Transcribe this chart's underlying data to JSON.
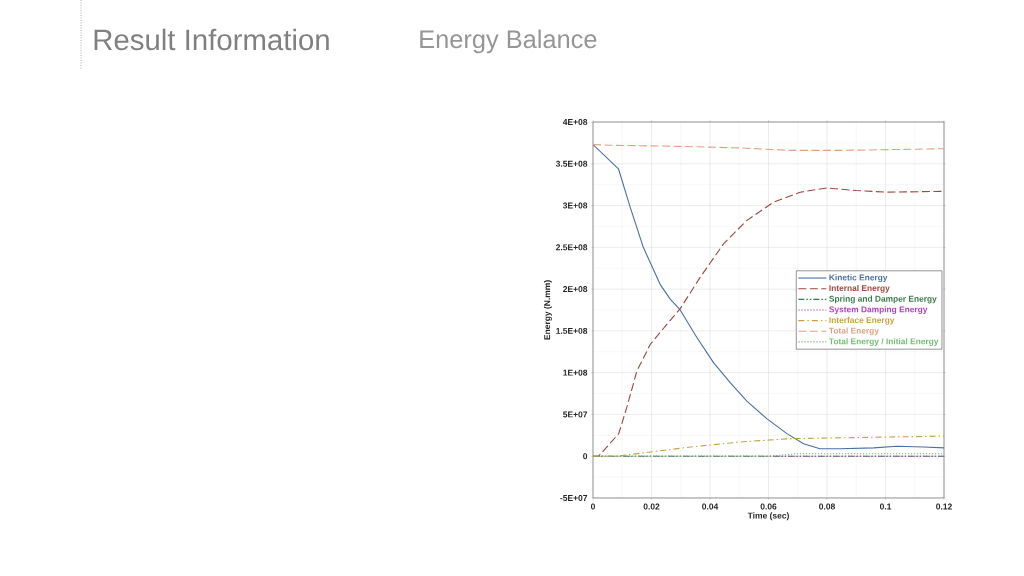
{
  "chart_data": {
    "type": "line",
    "title": "Result Information",
    "subtitle": "Energy Balance",
    "xlabel": "Time (sec)",
    "ylabel": "Energy (N.mm)",
    "xlim": [
      0,
      0.12
    ],
    "xticks": [
      0,
      0.02,
      0.04,
      0.06,
      0.08,
      0.1,
      0.12
    ],
    "ylim": [
      -50000000.0,
      400000000.0
    ],
    "yticks": [
      {
        "value": -50000000.0,
        "label": "-5E+07"
      },
      0,
      {
        "value": 50000000.0,
        "label": "5E+07"
      },
      {
        "value": 100000000.0,
        "label": "1E+08"
      },
      {
        "value": 150000000.0,
        "label": "1.5E+08"
      },
      {
        "value": 200000000.0,
        "label": "2E+08"
      },
      {
        "value": 250000000.0,
        "label": "2.5E+08"
      },
      {
        "value": 300000000.0,
        "label": "3E+08"
      },
      {
        "value": 350000000.0,
        "label": "3.5E+08"
      },
      {
        "value": 400000000.0,
        "label": "4E+08"
      }
    ],
    "grid": true,
    "legend": "right",
    "marker": "none",
    "series": [
      {
        "name": "Kinetic Energy",
        "color": "#4a6fa5",
        "line_style": "solid",
        "x": [
          0,
          0.0087,
          0.0127,
          0.0172,
          0.0229,
          0.0264,
          0.0298,
          0.0355,
          0.0412,
          0.0469,
          0.0526,
          0.0594,
          0.0663,
          0.072,
          0.0776,
          0.0845,
          0.0959,
          0.104,
          0.113,
          0.12
        ],
        "values": [
          373000000.0,
          344000000.0,
          298000000.0,
          250000000.0,
          206000000.0,
          188000000.0,
          175000000.0,
          142000000.0,
          112000000.0,
          88000000.0,
          66000000.0,
          45000000.0,
          27000000.0,
          15000000.0,
          9000000.0,
          9000000.0,
          10000000.0,
          12000000.0,
          11000000.0,
          10000000.0
        ]
      },
      {
        "name": "Internal Energy",
        "color": "#a0463a",
        "line_style": "dashed",
        "x": [
          0,
          0.0019,
          0.0088,
          0.0116,
          0.015,
          0.0196,
          0.0253,
          0.0297,
          0.0366,
          0.0446,
          0.0525,
          0.0617,
          0.0708,
          0.0799,
          0.09,
          0.1004,
          0.12
        ],
        "values": [
          0,
          0,
          27000000.0,
          59000000.0,
          102000000.0,
          134000000.0,
          158000000.0,
          176000000.0,
          214000000.0,
          254000000.0,
          282000000.0,
          304000000.0,
          316000000.0,
          321000000.0,
          318000000.0,
          316000000.0,
          317000000.0
        ]
      },
      {
        "name": "Spring and Damper Energy",
        "color": "#3a7a4a",
        "line_style": "dashdotdot",
        "x": [
          0,
          0.12
        ],
        "values": [
          0,
          0
        ]
      },
      {
        "name": "System Damping Energy",
        "color": "#b040c0",
        "line_style": "dotted",
        "x": [
          0,
          0.12
        ],
        "values": [
          0,
          0
        ]
      },
      {
        "name": "Interface Energy",
        "color": "#c8a040",
        "line_style": "dashdot",
        "x": [
          0,
          0.0082,
          0.0196,
          0.0333,
          0.0503,
          0.0674,
          0.0845,
          0.1016,
          0.12
        ],
        "values": [
          0,
          0,
          5000000.0,
          11000000.0,
          17000000.0,
          21000000.0,
          22000000.0,
          23000000.0,
          24000000.0
        ]
      },
      {
        "name": "Total Energy",
        "color": "#e0a080",
        "line_style": "dashed",
        "x": [
          0,
          0.0081,
          0.0275,
          0.05,
          0.0674,
          0.0845,
          0.12
        ],
        "values": [
          373000000.0,
          372000000.0,
          371000000.0,
          369000000.0,
          366000000.0,
          366000000.0,
          368000000.0
        ]
      },
      {
        "name": "Total Energy / Initial Energy",
        "color": "#70c070",
        "line_style": "dotted",
        "x": [
          0,
          0.06,
          0.07,
          0.12
        ],
        "values": [
          0,
          0,
          3000000.0,
          3000000.0
        ]
      }
    ]
  }
}
